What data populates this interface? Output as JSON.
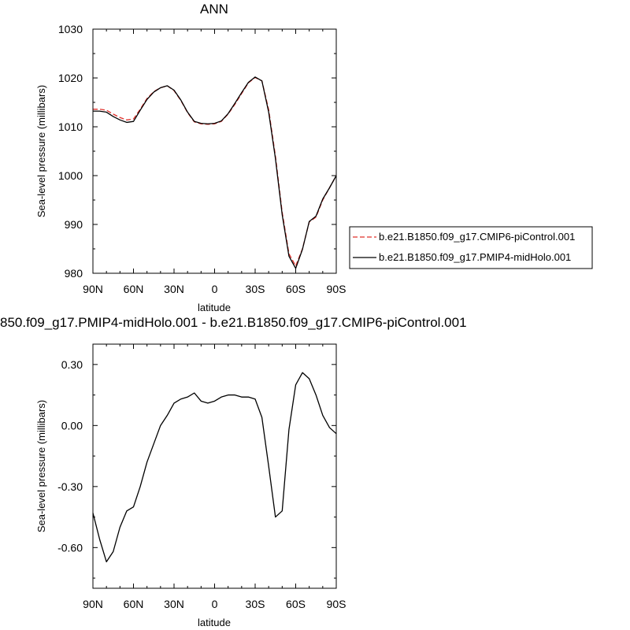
{
  "chart_data": [
    {
      "type": "line",
      "title": "ANN",
      "xlabel": "latitude",
      "ylabel": "Sea-level pressure (millibars)",
      "xticks": [
        "90N",
        "60N",
        "30N",
        "0",
        "30S",
        "60S",
        "90S"
      ],
      "xtick_values": [
        90,
        60,
        30,
        0,
        -30,
        -60,
        -90
      ],
      "xlim": [
        90,
        -90
      ],
      "ylim": [
        980,
        1030
      ],
      "yticks": [
        980,
        990,
        1000,
        1010,
        1020,
        1030
      ],
      "ytick_labels": [
        "980",
        "990",
        "1000",
        "1010",
        "1020",
        "1030"
      ],
      "x": [
        90,
        85,
        80,
        75,
        70,
        65,
        60,
        55,
        50,
        45,
        40,
        35,
        30,
        25,
        20,
        15,
        10,
        5,
        0,
        -5,
        -10,
        -15,
        -20,
        -25,
        -30,
        -35,
        -40,
        -45,
        -50,
        -55,
        -60,
        -65,
        -70,
        -75,
        -80,
        -85,
        -90
      ],
      "series": [
        {
          "name": "b.e21.B1850.f09_g17.CMIP6-piControl.001",
          "color": "#e0302b",
          "dash": "dashed",
          "values": [
            1013.6,
            1013.6,
            1013.4,
            1012.6,
            1011.9,
            1011.4,
            1011.6,
            1013.6,
            1015.8,
            1017.2,
            1018.0,
            1018.4,
            1017.4,
            1015.4,
            1012.9,
            1011.0,
            1010.6,
            1010.5,
            1010.6,
            1011.1,
            1012.6,
            1014.6,
            1016.8,
            1019.0,
            1020.1,
            1019.4,
            1013.5,
            1004.0,
            992.5,
            984.0,
            981.5,
            985.0,
            990.5,
            991.5,
            995.0,
            997.5,
            1000.0
          ]
        },
        {
          "name": "b.e21.B1850.f09_g17.PMIP4-midHolo.001",
          "color": "#000000",
          "dash": "solid",
          "values": [
            1013.2,
            1013.2,
            1013.0,
            1012.1,
            1011.4,
            1010.9,
            1011.1,
            1013.4,
            1015.6,
            1017.1,
            1018.0,
            1018.4,
            1017.5,
            1015.5,
            1013.0,
            1011.1,
            1010.7,
            1010.6,
            1010.7,
            1011.2,
            1012.7,
            1014.8,
            1017.0,
            1019.1,
            1020.2,
            1019.4,
            1013.0,
            1003.5,
            992.0,
            983.5,
            981.0,
            984.9,
            990.6,
            991.7,
            995.2,
            997.5,
            1000.0
          ]
        }
      ],
      "legend": "right"
    },
    {
      "type": "line",
      "title": "850.f09_g17.PMIP4-midHolo.001 - b.e21.B1850.f09_g17.CMIP6-piControl.001",
      "xlabel": "latitude",
      "ylabel": "Sea-level pressure (millibars)",
      "xticks": [
        "90N",
        "60N",
        "30N",
        "0",
        "30S",
        "60S",
        "90S"
      ],
      "xtick_values": [
        90,
        60,
        30,
        0,
        -30,
        -60,
        -90
      ],
      "xlim": [
        90,
        -90
      ],
      "ylim": [
        -0.8,
        0.4
      ],
      "yticks": [
        -0.6,
        -0.3,
        0.0,
        0.3
      ],
      "ytick_labels": [
        "-0.60",
        "-0.30",
        "0.00",
        "0.30"
      ],
      "x": [
        90,
        85,
        80,
        75,
        70,
        65,
        60,
        55,
        50,
        45,
        40,
        35,
        30,
        25,
        20,
        15,
        10,
        5,
        0,
        -5,
        -10,
        -15,
        -20,
        -25,
        -30,
        -35,
        -40,
        -45,
        -50,
        -55,
        -60,
        -65,
        -70,
        -75,
        -80,
        -85,
        -90
      ],
      "series": [
        {
          "name": "",
          "color": "#000000",
          "dash": "solid",
          "values": [
            -0.43,
            -0.56,
            -0.67,
            -0.62,
            -0.5,
            -0.42,
            -0.4,
            -0.3,
            -0.18,
            -0.09,
            0.0,
            0.05,
            0.11,
            0.13,
            0.14,
            0.16,
            0.12,
            0.11,
            0.12,
            0.14,
            0.15,
            0.15,
            0.14,
            0.14,
            0.13,
            0.04,
            -0.2,
            -0.45,
            -0.42,
            -0.02,
            0.2,
            0.26,
            0.23,
            0.15,
            0.05,
            -0.01,
            -0.04
          ]
        }
      ]
    }
  ]
}
